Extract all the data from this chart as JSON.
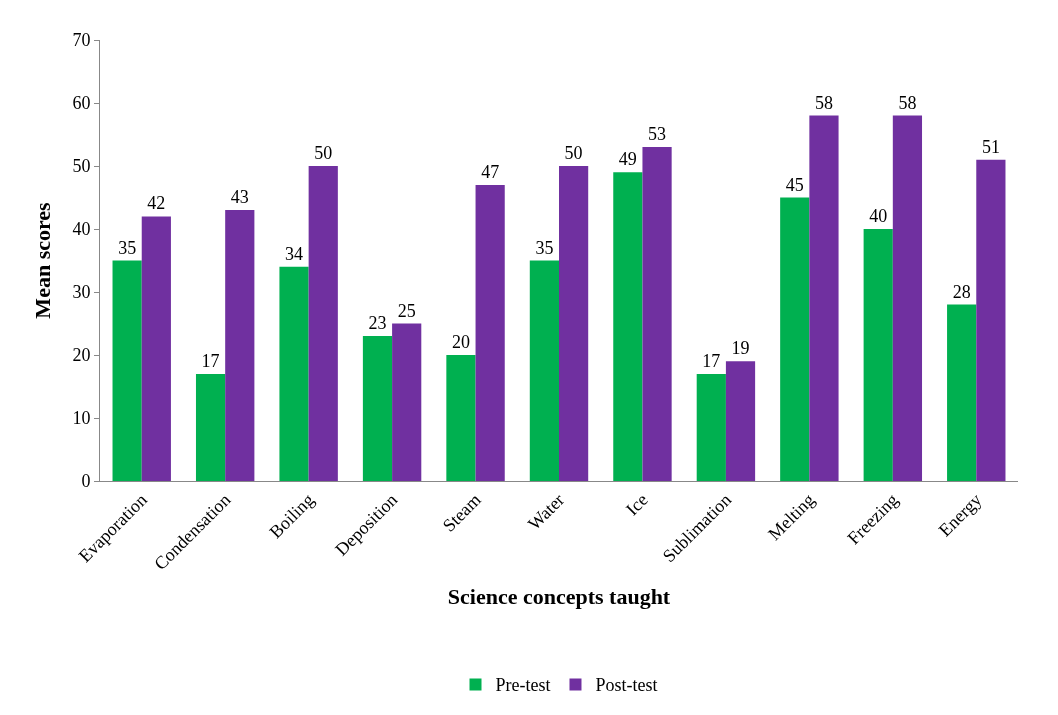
{
  "chart_data": {
    "type": "bar",
    "xlabel": "Science concepts taught",
    "ylabel": "Mean scores",
    "categories": [
      "Evaporation",
      "Condensation",
      "Boiling",
      "Deposition",
      "Steam",
      "Water",
      "Ice",
      "Sublimation",
      "Melting",
      "Freezing",
      "Energy"
    ],
    "series": [
      {
        "name": "Pre-test",
        "color": "#00b050",
        "values": [
          35,
          17,
          34,
          23,
          20,
          35,
          49,
          17,
          45,
          40,
          28
        ]
      },
      {
        "name": "Post-test",
        "color": "#7030a0",
        "values": [
          42,
          43,
          50,
          25,
          47,
          50,
          53,
          19,
          58,
          58,
          51
        ]
      }
    ],
    "ylim": [
      0,
      70
    ],
    "yticks": [
      0,
      10,
      20,
      30,
      40,
      50,
      60,
      70
    ],
    "grid": false,
    "legend": "bottom",
    "data_labels": true
  }
}
